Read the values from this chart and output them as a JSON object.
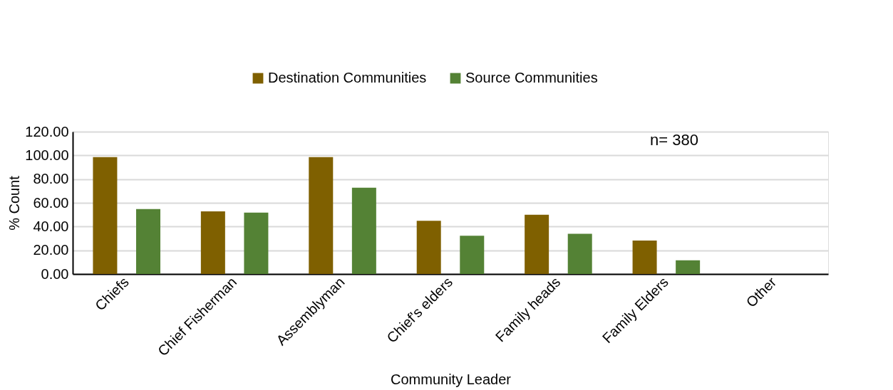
{
  "chart_data": {
    "type": "bar",
    "xlabel": "Community Leader",
    "ylabel": "% Count",
    "categories": [
      "Chiefs",
      "Chief Fisherman",
      "Assemblyman",
      "Chief's elders",
      "Family heads",
      "Family Elders",
      "Other"
    ],
    "series": [
      {
        "name": "Destination Communities",
        "color": "#7f6000",
        "values": [
          98.6,
          52.8,
          98.6,
          44.9,
          49.9,
          28.2,
          0
        ]
      },
      {
        "name": "Source Communities",
        "color": "#548235",
        "values": [
          54.7,
          51.7,
          72.7,
          32.3,
          33.9,
          11.6,
          0
        ]
      }
    ],
    "ylim": [
      0,
      120
    ],
    "yticks": [
      {
        "value": 0,
        "label": "0.00"
      },
      {
        "value": 20,
        "label": "20.00"
      },
      {
        "value": 40,
        "label": "40.00"
      },
      {
        "value": 60,
        "label": "60.00"
      },
      {
        "value": 80,
        "label": "80.00"
      },
      {
        "value": 100,
        "label": "100.00"
      },
      {
        "value": 120,
        "label": "120.00"
      }
    ],
    "grid": "y",
    "legend": "top",
    "annotations": [
      "n= 380"
    ]
  }
}
